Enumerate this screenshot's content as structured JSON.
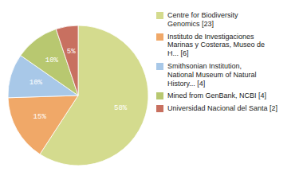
{
  "chart_data": {
    "type": "pie",
    "categories": [
      "Centre for Biodiversity\nGenomics [23]",
      "Instituto de Investigaciones\nMarinas y Costeras, Museo de\nH... [6]",
      "Smithsonian Institution,\nNational Museum of Natural\nHistory... [4]",
      "Mined from GenBank, NCBI [4]",
      "Universidad Nacional del Santa [2]"
    ],
    "values": [
      58,
      15,
      10,
      10,
      5
    ],
    "value_labels": [
      "58%",
      "15%",
      "10%",
      "10%",
      "5%"
    ],
    "colors": [
      "#d4db8e",
      "#f0a868",
      "#a8c8e8",
      "#b8c870",
      "#c87060"
    ],
    "data_labels": true,
    "legend": "right"
  }
}
